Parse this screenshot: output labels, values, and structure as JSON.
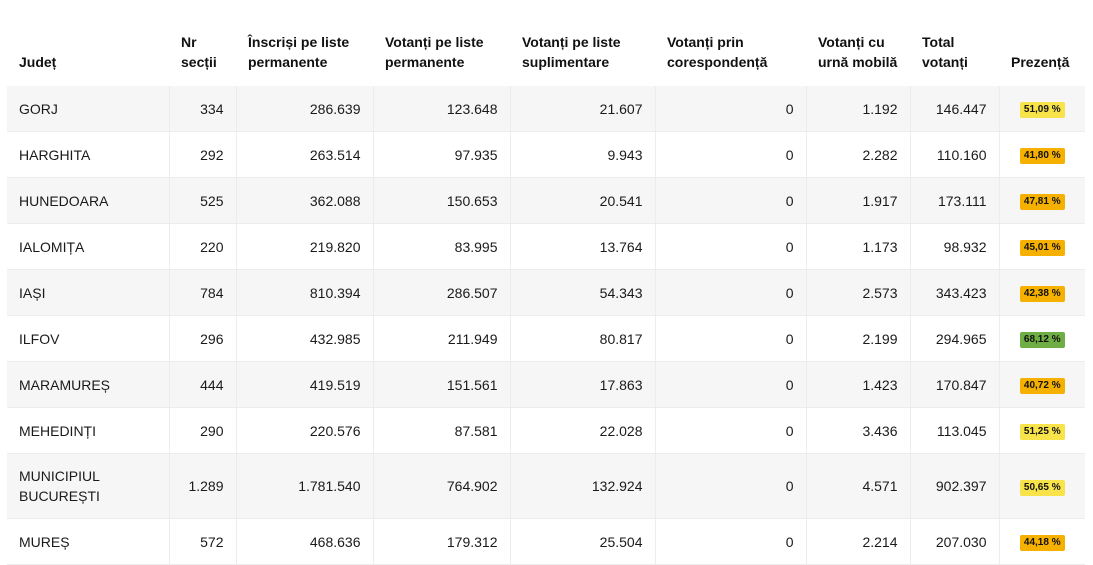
{
  "columns": {
    "judet": "Județ",
    "nr_sectii": "Nr secții",
    "inscrisi": "Înscriși pe liste permanente",
    "votanti_perm": "Votanți pe liste permanente",
    "votanti_supl": "Votanți pe liste suplimentare",
    "votanti_coresp": "Votanți prin corespondență",
    "votanti_urna": "Votanți cu urnă mobilă",
    "total": "Total votanți",
    "prezenta": "Prezență"
  },
  "rows": [
    {
      "judet": "GORJ",
      "nr_sectii": "334",
      "inscrisi": "286.639",
      "votanti_perm": "123.648",
      "votanti_supl": "21.607",
      "votanti_coresp": "0",
      "votanti_urna": "1.192",
      "total": "146.447",
      "prezenta": "51,09 %",
      "badge_color": "#f8e34b"
    },
    {
      "judet": "HARGHITA",
      "nr_sectii": "292",
      "inscrisi": "263.514",
      "votanti_perm": "97.935",
      "votanti_supl": "9.943",
      "votanti_coresp": "0",
      "votanti_urna": "2.282",
      "total": "110.160",
      "prezenta": "41,80 %",
      "badge_color": "#f5b000"
    },
    {
      "judet": "HUNEDOARA",
      "nr_sectii": "525",
      "inscrisi": "362.088",
      "votanti_perm": "150.653",
      "votanti_supl": "20.541",
      "votanti_coresp": "0",
      "votanti_urna": "1.917",
      "total": "173.111",
      "prezenta": "47,81 %",
      "badge_color": "#f5b000"
    },
    {
      "judet": "IALOMIȚA",
      "nr_sectii": "220",
      "inscrisi": "219.820",
      "votanti_perm": "83.995",
      "votanti_supl": "13.764",
      "votanti_coresp": "0",
      "votanti_urna": "1.173",
      "total": "98.932",
      "prezenta": "45,01 %",
      "badge_color": "#f5b000"
    },
    {
      "judet": "IAȘI",
      "nr_sectii": "784",
      "inscrisi": "810.394",
      "votanti_perm": "286.507",
      "votanti_supl": "54.343",
      "votanti_coresp": "0",
      "votanti_urna": "2.573",
      "total": "343.423",
      "prezenta": "42,38 %",
      "badge_color": "#f5b000"
    },
    {
      "judet": "ILFOV",
      "nr_sectii": "296",
      "inscrisi": "432.985",
      "votanti_perm": "211.949",
      "votanti_supl": "80.817",
      "votanti_coresp": "0",
      "votanti_urna": "2.199",
      "total": "294.965",
      "prezenta": "68,12 %",
      "badge_color": "#6fae44"
    },
    {
      "judet": "MARAMUREȘ",
      "nr_sectii": "444",
      "inscrisi": "419.519",
      "votanti_perm": "151.561",
      "votanti_supl": "17.863",
      "votanti_coresp": "0",
      "votanti_urna": "1.423",
      "total": "170.847",
      "prezenta": "40,72 %",
      "badge_color": "#f5b000"
    },
    {
      "judet": "MEHEDINȚI",
      "nr_sectii": "290",
      "inscrisi": "220.576",
      "votanti_perm": "87.581",
      "votanti_supl": "22.028",
      "votanti_coresp": "0",
      "votanti_urna": "3.436",
      "total": "113.045",
      "prezenta": "51,25 %",
      "badge_color": "#f8e34b"
    },
    {
      "judet": "MUNICIPIUL BUCUREȘTI",
      "nr_sectii": "1.289",
      "inscrisi": "1.781.540",
      "votanti_perm": "764.902",
      "votanti_supl": "132.924",
      "votanti_coresp": "0",
      "votanti_urna": "4.571",
      "total": "902.397",
      "prezenta": "50,65 %",
      "badge_color": "#f8e34b"
    },
    {
      "judet": "MUREȘ",
      "nr_sectii": "572",
      "inscrisi": "468.636",
      "votanti_perm": "179.312",
      "votanti_supl": "25.504",
      "votanti_coresp": "0",
      "votanti_urna": "2.214",
      "total": "207.030",
      "prezenta": "44,18 %",
      "badge_color": "#f5b000"
    }
  ]
}
